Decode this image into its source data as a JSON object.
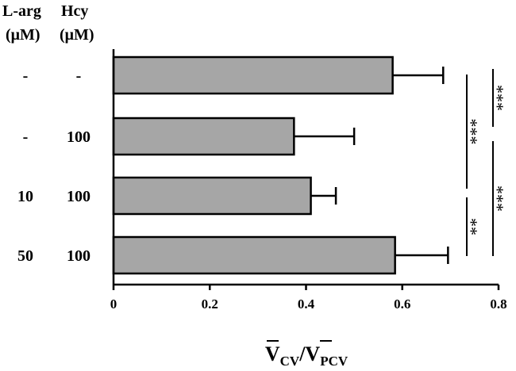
{
  "chart_data": {
    "type": "bar",
    "orientation": "horizontal",
    "row_headers": [
      {
        "line1": "L-arg",
        "line2": "(μM)"
      },
      {
        "line1": "Hcy",
        "line2": "(μM)"
      }
    ],
    "rows": [
      {
        "larg": "-",
        "hcy": "-",
        "value": 0.58,
        "error": 0.105
      },
      {
        "larg": "-",
        "hcy": "100",
        "value": 0.375,
        "error": 0.125
      },
      {
        "larg": "10",
        "hcy": "100",
        "value": 0.41,
        "error": 0.052
      },
      {
        "larg": "50",
        "hcy": "100",
        "value": 0.585,
        "error": 0.11
      }
    ],
    "xlim": [
      0,
      0.8
    ],
    "xticks": [
      0,
      0.2,
      0.4,
      0.6,
      0.8
    ],
    "xtick_labels": [
      "0",
      "0.2",
      "0.4",
      "0.6",
      "0.8"
    ],
    "xlabel": {
      "num_main": "V",
      "num_sub": "CV",
      "sep": "/",
      "den_main": "V",
      "den_sub": "PCV"
    },
    "bar_color": "#a6a6a6",
    "significance": [
      {
        "from": 0,
        "to": 1,
        "label": "***",
        "bracket": "outer"
      },
      {
        "from": 0,
        "to": 2,
        "label": "***",
        "bracket": "inner"
      },
      {
        "from": 2,
        "to": 3,
        "label": "**",
        "bracket": "inner"
      },
      {
        "from": 1,
        "to": 3,
        "label": "***",
        "bracket": "outer"
      }
    ]
  }
}
